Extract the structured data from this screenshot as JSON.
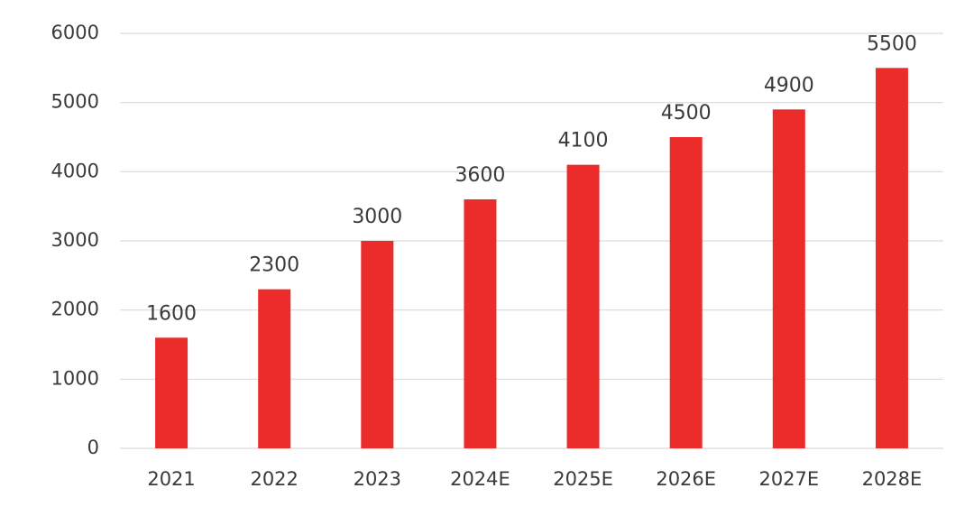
{
  "colors": {
    "bar": "#ec2b2b",
    "grid": "#d9d9d9",
    "text": "#3a3a3a",
    "background": "#ffffff"
  },
  "chart_data": {
    "type": "bar",
    "title": "",
    "xlabel": "",
    "ylabel": "",
    "categories": [
      "2021",
      "2022",
      "2023",
      "2024E",
      "2025E",
      "2026E",
      "2027E",
      "2028E"
    ],
    "values": [
      1600,
      2300,
      3000,
      3600,
      4100,
      4500,
      4900,
      5500
    ],
    "data_labels": [
      "1600",
      "2300",
      "3000",
      "3600",
      "4100",
      "4500",
      "4900",
      "5500"
    ],
    "ylim": [
      0,
      6000
    ],
    "y_ticks": [
      0,
      1000,
      2000,
      3000,
      4000,
      5000,
      6000
    ],
    "y_tick_labels": [
      "0",
      "1000",
      "2000",
      "3000",
      "4000",
      "5000",
      "6000"
    ],
    "grid": "horizontal",
    "legend": "none"
  }
}
